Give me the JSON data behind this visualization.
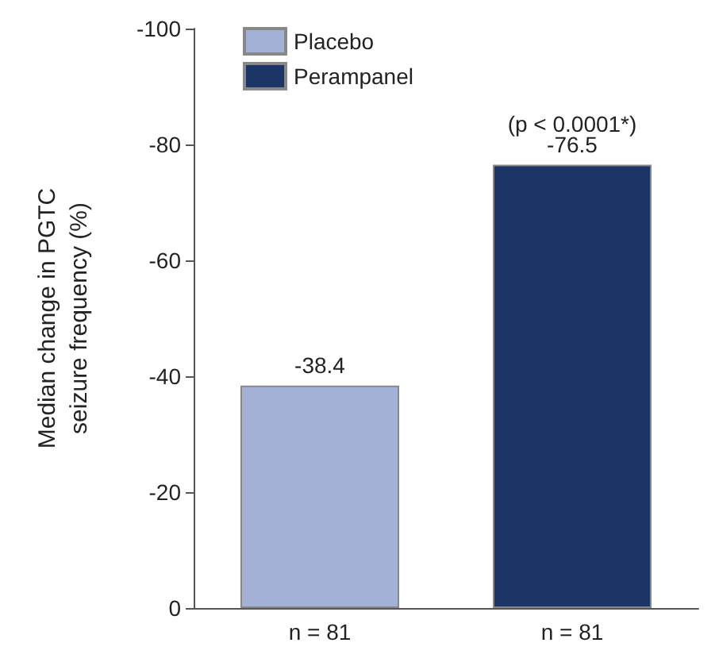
{
  "chart_data": {
    "type": "bar",
    "ylabel": "Median change in PGTC\nseizure frequency (%)",
    "categories": [
      "n = 81",
      "n = 81"
    ],
    "series": [
      {
        "name": "Placebo",
        "color": "#a3b1d6",
        "values": [
          -38.4,
          null
        ]
      },
      {
        "name": "Perampanel",
        "color": "#1b3566",
        "values": [
          null,
          -76.5
        ]
      }
    ],
    "ylim": [
      0,
      -100
    ],
    "yticks": [
      0,
      -20,
      -40,
      -60,
      -80,
      -100
    ],
    "data_labels": true,
    "legend": "top left",
    "grid": false,
    "annotations": [
      {
        "text": "(p < 0.0001*)",
        "y": -76.5
      }
    ]
  }
}
